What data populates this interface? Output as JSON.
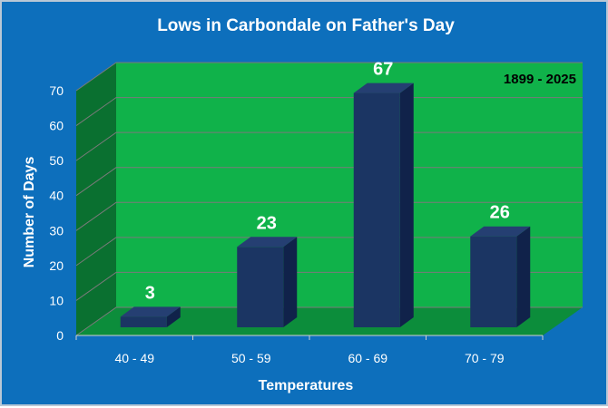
{
  "chart_data": {
    "type": "bar",
    "title": "Lows in Carbondale on Father's Day",
    "annotation": "1899 - 2025",
    "xlabel": "Temperatures",
    "ylabel": "Number of Days",
    "categories": [
      "40 - 49",
      "50 - 59",
      "60 - 69",
      "70 - 79"
    ],
    "values": [
      3,
      23,
      67,
      26
    ],
    "ylim": [
      0,
      70
    ],
    "yticks": [
      0,
      10,
      20,
      30,
      40,
      50,
      60,
      70
    ],
    "grid": true,
    "legend": "none",
    "colors": {
      "background": "#0d6fbc",
      "plot_back_wall": "#10b24a",
      "plot_side_wall": "#0a7030",
      "plot_floor": "#0c8d3b",
      "bar_front": "#1b3563",
      "bar_side": "#10224a",
      "bar_top": "#253f72",
      "text": "#ffffff",
      "annotation_text": "#000000"
    }
  }
}
